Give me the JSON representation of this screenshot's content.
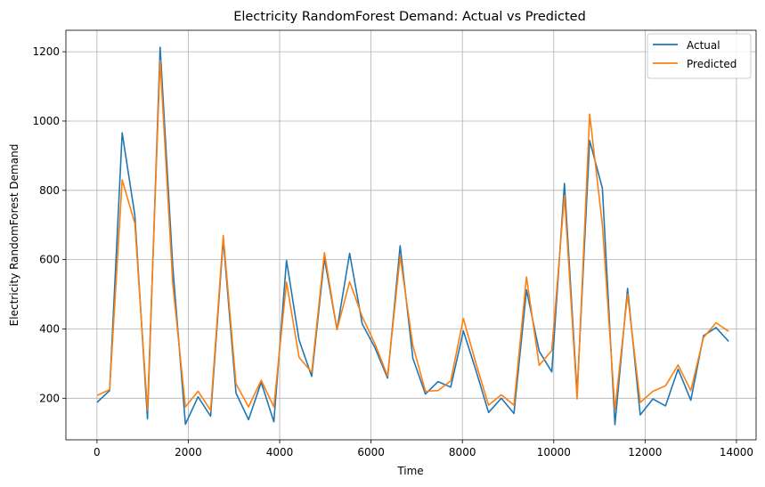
{
  "chart_data": {
    "type": "line",
    "title": "Electricity RandomForest Demand: Actual vs Predicted",
    "xlabel": "Time",
    "ylabel": "Electricity RandomForest Demand",
    "xlim": [
      -680,
      14430
    ],
    "ylim": [
      80,
      1262
    ],
    "xticks": [
      0,
      2000,
      4000,
      6000,
      8000,
      10000,
      12000,
      14000
    ],
    "yticks": [
      200,
      400,
      600,
      800,
      1000,
      1200
    ],
    "grid": true,
    "legend_position": "top-right",
    "x": [
      0,
      277,
      553,
      830,
      1106,
      1383,
      1660,
      1936,
      2213,
      2489,
      2766,
      3043,
      3319,
      3596,
      3872,
      4149,
      4425,
      4702,
      4979,
      5255,
      5532,
      5808,
      6085,
      6362,
      6638,
      6915,
      7191,
      7468,
      7745,
      8021,
      8298,
      8574,
      8851,
      9128,
      9404,
      9681,
      9957,
      10234,
      10511,
      10787,
      11064,
      11340,
      11617,
      11894,
      12170,
      12447,
      12723,
      13000,
      13277,
      13553,
      13830
    ],
    "series": [
      {
        "name": "Actual",
        "color": "#1f77b4",
        "values": [
          188,
          222,
          966,
          728,
          140,
          1213,
          579,
          125,
          204,
          148,
          658,
          215,
          138,
          246,
          132,
          598,
          368,
          263,
          604,
          398,
          618,
          414,
          346,
          258,
          640,
          315,
          212,
          248,
          232,
          394,
          280,
          159,
          200,
          156,
          513,
          336,
          276,
          820,
          213,
          944,
          806,
          124,
          517,
          152,
          198,
          178,
          284,
          194,
          380,
          404,
          364
        ]
      },
      {
        "name": "Predicted",
        "color": "#ff7f0e",
        "values": [
          208,
          225,
          830,
          705,
          165,
          1175,
          530,
          175,
          220,
          165,
          670,
          242,
          175,
          252,
          175,
          535,
          318,
          275,
          620,
          398,
          536,
          435,
          357,
          264,
          610,
          352,
          220,
          222,
          250,
          430,
          300,
          180,
          210,
          180,
          550,
          295,
          338,
          785,
          198,
          1020,
          700,
          168,
          500,
          188,
          220,
          236,
          296,
          222,
          375,
          418,
          393
        ]
      }
    ]
  }
}
